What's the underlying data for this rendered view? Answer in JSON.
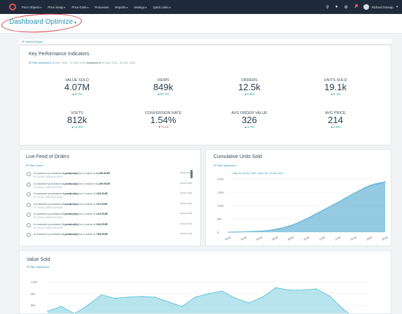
{
  "topnav": {
    "items": [
      "Price Objects",
      "Price Setup",
      "Price Grids",
      "Processes",
      "Reports",
      "Settings",
      "Quick Links"
    ],
    "user": "Richard Gamaju"
  },
  "page": {
    "title": "Dashboard Optimize"
  },
  "tab": {
    "label": "General Basis"
  },
  "kpi_card": {
    "title": "Key Performance Indicators",
    "filter": "Filter dashboard",
    "range": "16 Nov, 2020 - 22 Nov, 2020",
    "compared_label": "compared to",
    "compared_range": "09 Nov, 2020 - 15 Nov, 2020",
    "items": [
      {
        "label": "VALUE SOLD",
        "value": "4.07M",
        "change": "▲5.7%",
        "dir": "up"
      },
      {
        "label": "VIEWS",
        "value": "849k",
        "change": "▲82.1%",
        "dir": "up"
      },
      {
        "label": "ORDERS",
        "value": "12.5k",
        "change": "▲0.9%",
        "dir": "up"
      },
      {
        "label": "UNITS SOLD",
        "value": "19.1k",
        "change": "▲6.1%",
        "dir": "up"
      },
      {
        "label": "VISITS",
        "value": "812k",
        "change": "▲11.4%",
        "dir": "up"
      },
      {
        "label": "CONVERSION RATE",
        "value": "1.54%",
        "change": "▼-0.16",
        "dir": "down"
      },
      {
        "label": "AVG ORDER VALUE",
        "value": "326",
        "change": "▲4.7%",
        "dir": "up"
      },
      {
        "label": "AVG PRICE",
        "value": "214",
        "change": "▲0.6%",
        "dir": "up"
      }
    ]
  },
  "live_feed": {
    "title": "Live Feed of Orders",
    "filter": "Filter orders",
    "view_label": "(show cart)",
    "orders": [
      {
        "prefix": "A customer purchased",
        "qty": "1 product(s)",
        "mid": "for a value of",
        "amount": "1,199 EUR",
        "time": "Fri, 20 Nov, 2020 at 10:56:14"
      },
      {
        "prefix": "A customer purchased",
        "qty": "1 product(s)",
        "mid": "for a value of",
        "amount": "1,199 EUR",
        "time": "Fri, 20 Nov, 2020 at 10:53:31"
      },
      {
        "prefix": "A customer purchased",
        "qty": "1 product(s)",
        "mid": "for a value of",
        "amount": "169 EUR",
        "time": "Fri, 20 Nov, 2020 at 10:53:43"
      },
      {
        "prefix": "A customer purchased",
        "qty": "1 product(s)",
        "mid": "for a value of",
        "amount": "110 EUR",
        "time": "Fri, 20 Nov, 2020 at 10:53:25"
      },
      {
        "prefix": "A customer purchased",
        "qty": "1 product(s)",
        "mid": "for a value of",
        "amount": "124 EUR",
        "time": "Fri, 20 Nov, 2020 at 10:53:14"
      },
      {
        "prefix": "A customer purchased",
        "qty": "1 product(s)",
        "mid": "for a value of",
        "amount": "164 EUR",
        "time": "Fri, 20 Nov, 2020 at 10:52:59"
      },
      {
        "prefix": "A customer purchased",
        "qty": "1 product(s)",
        "mid": "for a value of",
        "amount": "769 EUR",
        "time": ""
      }
    ]
  },
  "units_chart_card": {
    "title": "Cumulative Units Sold",
    "filter": "Filter dashboard"
  },
  "value_chart_card": {
    "title": "Value Sold",
    "filter": "Filter dashboard"
  },
  "chart_data": [
    {
      "type": "area",
      "title": "Cumulative Units Sold",
      "legend": [
        "Index W: 16 Nov, 2020 - Index Thu: 19 Nov, 2020"
      ],
      "x_ticks": [
        "00:00",
        "02:00",
        "04:00",
        "06:00",
        "08:00",
        "10:00",
        "12:00",
        "14:00",
        "16:00",
        "18:00",
        "20:00"
      ],
      "ylim": [
        0,
        2000
      ],
      "y_ticks": [
        "2,000",
        "1,500",
        "1,000",
        "500",
        "0"
      ],
      "series": [
        {
          "name": "current",
          "color": "#5fc3d6",
          "values": [
            0,
            5,
            10,
            15,
            20,
            30,
            40,
            50,
            70,
            100,
            140,
            180,
            240,
            300,
            380,
            470,
            560,
            660,
            760,
            860,
            960,
            1060,
            1160,
            1270,
            1380,
            1480,
            1580,
            1680,
            1760,
            1820,
            1860,
            1900
          ]
        },
        {
          "name": "previous",
          "color": "#8a7dd6",
          "values": [
            0,
            4,
            8,
            12,
            18,
            26,
            36,
            46,
            64,
            92,
            130,
            170,
            230,
            290,
            370,
            460,
            550,
            650,
            750,
            850,
            950,
            1050,
            1150,
            1260,
            1370,
            1470,
            1570,
            1660,
            1740,
            1800,
            1840,
            1890
          ]
        }
      ],
      "grid": true
    },
    {
      "type": "area",
      "title": "Value Sold",
      "ylim": [
        0,
        1000
      ],
      "y_ticks": [
        "1,000",
        "900",
        "800"
      ],
      "series": [
        {
          "name": "value",
          "color": "#5fc3d6",
          "values": [
            750,
            790,
            730,
            800,
            890,
            860,
            870,
            875,
            870,
            830,
            790,
            870,
            900,
            920,
            860,
            820,
            870,
            950,
            930,
            930,
            940,
            880,
            770,
            680,
            700
          ]
        }
      ],
      "grid": true
    }
  ]
}
